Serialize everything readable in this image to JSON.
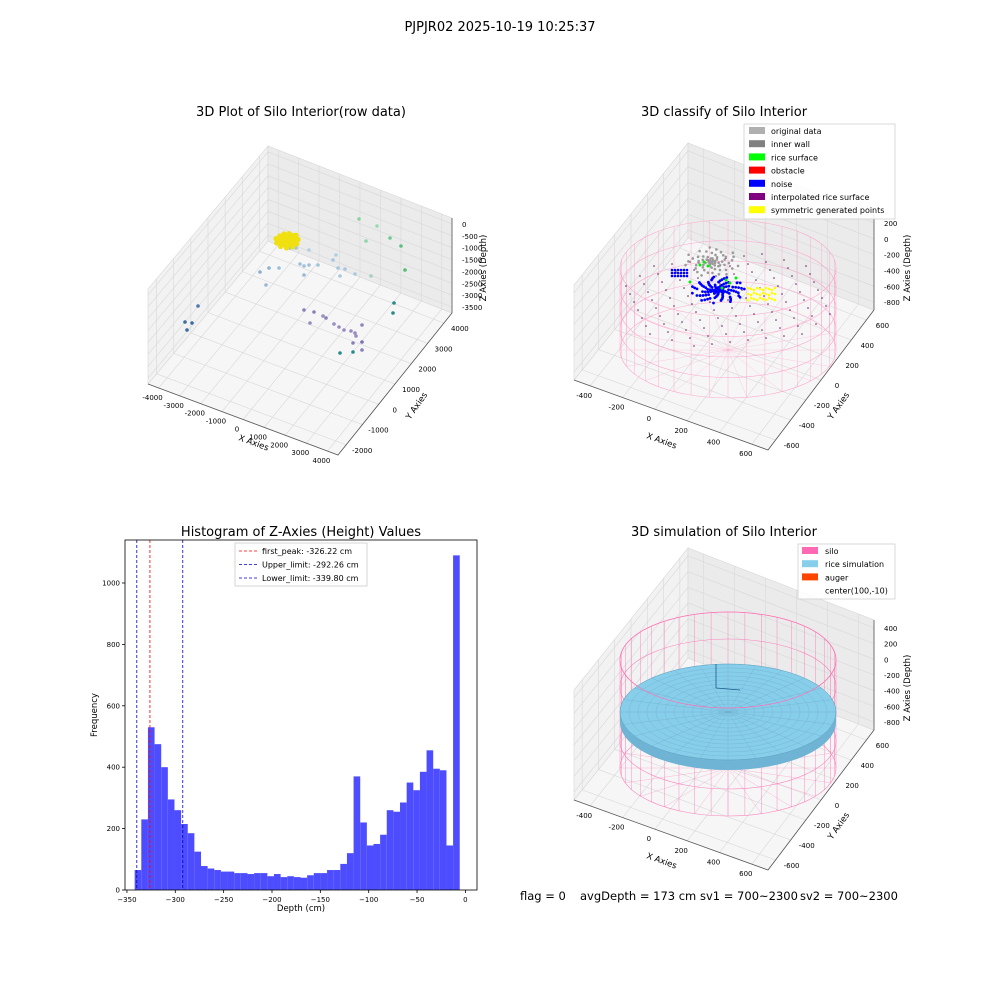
{
  "figure": {
    "suptitle": "PJPJR02 2025-10-19 10:25:37",
    "footer": {
      "flag": "flag = 0",
      "avg": "avgDepth = 173 cm",
      "sv1": "sv1 = 700~2300",
      "sv2": "sv2 = 700~2300"
    }
  },
  "colors": {
    "histogram": "#4d4dff",
    "first_peak": "#ff0000",
    "limits": "#0000cc",
    "silo": "#ff69b4",
    "rice": "#87ceeb",
    "auger": "#ff4500",
    "original": "#b0b0b0",
    "inner_wall": "#808080",
    "rice_surface": "#00ff00",
    "obstacle": "#ff0000",
    "noise": "#0000ff",
    "interp": "#800080",
    "symmetric": "#ffff00"
  },
  "chart_data": [
    {
      "type": "scatter",
      "title": "3D Plot of Silo Interior(row data)",
      "xlabel": "X Axies",
      "ylabel": "Y Axies",
      "zlabel": "Z Axies (Depth)",
      "xticks": [
        "-4000",
        "-3000",
        "-2000",
        "-1000",
        "0",
        "1000",
        "2000",
        "3000",
        "4000"
      ],
      "yticks": [
        "-2000",
        "-1000",
        "0",
        "1000",
        "2000",
        "3000",
        "4000"
      ],
      "zticks": [
        "0",
        "-500",
        "-1000",
        "-1500",
        "-2000",
        "-2500",
        "-3000",
        "-3500"
      ]
    },
    {
      "type": "scatter",
      "title": "3D classify of Silo Interior",
      "xlabel": "X Axies",
      "ylabel": "Y Axies",
      "zlabel": "Z Axies (Depth)",
      "xticks": [
        "-400",
        "-200",
        "0",
        "200",
        "400",
        "600"
      ],
      "yticks": [
        "-600",
        "-400",
        "-200",
        "0",
        "200",
        "400",
        "600"
      ],
      "zticks": [
        "200",
        "0",
        "-200",
        "-400",
        "-600",
        "-800"
      ],
      "legend": [
        {
          "label": "original data",
          "color": "#b0b0b0"
        },
        {
          "label": "inner wall",
          "color": "#808080"
        },
        {
          "label": "rice surface",
          "color": "#00ff00"
        },
        {
          "label": "obstacle",
          "color": "#ff0000"
        },
        {
          "label": "noise",
          "color": "#0000ff"
        },
        {
          "label": "interpolated rice surface",
          "color": "#800080"
        },
        {
          "label": "symmetric generated points",
          "color": "#ffff00"
        }
      ],
      "legend_position": "top-right"
    },
    {
      "type": "bar",
      "title": "Histogram of Z-Axies (Height) Values",
      "xlabel": "Depth (cm)",
      "ylabel": "Frequency",
      "xlim": [
        -352,
        12
      ],
      "ylim": [
        0,
        1140
      ],
      "xticks": [
        -350,
        -300,
        -250,
        -200,
        -150,
        -100,
        -50,
        0
      ],
      "yticks": [
        0,
        200,
        400,
        600,
        800,
        1000
      ],
      "bin_start": -342,
      "bin_width": 6.86,
      "values": [
        65,
        230,
        530,
        475,
        400,
        295,
        260,
        215,
        185,
        125,
        78,
        70,
        65,
        60,
        60,
        55,
        55,
        52,
        55,
        55,
        45,
        52,
        42,
        45,
        42,
        40,
        48,
        55,
        55,
        65,
        65,
        85,
        120,
        370,
        220,
        145,
        150,
        180,
        260,
        255,
        285,
        350,
        325,
        385,
        455,
        395,
        390,
        145,
        1090
      ],
      "lines": [
        {
          "label": "first_peak: -326.22 cm",
          "x": -326.22,
          "color": "#ff0000"
        },
        {
          "label": "Upper_limit: -292.26 cm",
          "x": -292.26,
          "color": "#0000cc"
        },
        {
          "label": "Lower_limit: -339.80 cm",
          "x": -339.8,
          "color": "#0000cc"
        }
      ],
      "legend_position": "top-center"
    },
    {
      "type": "scatter",
      "title": "3D simulation of Silo Interior",
      "xlabel": "X Axies",
      "ylabel": "Y Axies",
      "zlabel": "Z Axies (Depth)",
      "xticks": [
        "-400",
        "-200",
        "0",
        "200",
        "400",
        "600"
      ],
      "yticks": [
        "-600",
        "-400",
        "-200",
        "0",
        "200",
        "400",
        "600"
      ],
      "zticks": [
        "400",
        "200",
        "0",
        "-200",
        "-400",
        "-600",
        "-800"
      ],
      "legend": [
        {
          "label": "silo",
          "color": "#ff69b4"
        },
        {
          "label": "rice simulation",
          "color": "#87ceeb"
        },
        {
          "label": "auger",
          "color": "#ff4500"
        },
        {
          "label": "center(100,-10)",
          "color": ""
        }
      ],
      "legend_position": "top-right"
    }
  ]
}
